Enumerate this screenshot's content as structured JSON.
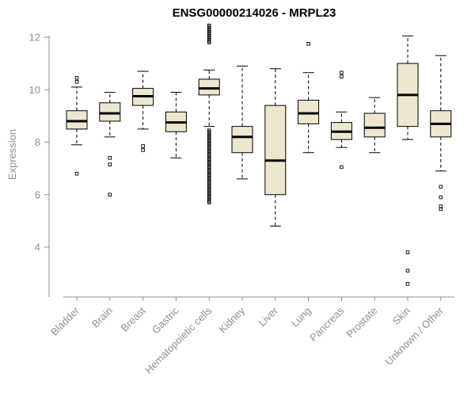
{
  "chart_data": {
    "type": "boxplot",
    "title": "ENSG00000214026 - MRPL23",
    "ylabel": "Expression",
    "yticks": [
      4,
      6,
      8,
      10,
      12
    ],
    "ylim": [
      2.3,
      12.6
    ],
    "grid": false,
    "legend": "none",
    "colors": {
      "box_fill": "#EDE7D0",
      "box_border": "#000000",
      "median": "#000000",
      "axis": "#8f8f8f",
      "title": "#000000"
    },
    "categories": [
      "Bladder",
      "Brain",
      "Breast",
      "Gastric",
      "Hematopoietic cells",
      "Kidney",
      "Liver",
      "Lung",
      "Pancreas",
      "Prostate",
      "Skin",
      "Unknown / Other"
    ],
    "boxes": [
      {
        "category": "Bladder",
        "lower_whisker": 7.9,
        "q1": 8.5,
        "median": 8.8,
        "q3": 9.2,
        "upper_whisker": 10.1,
        "outliers": [
          10.45,
          10.3,
          6.8
        ]
      },
      {
        "category": "Brain",
        "lower_whisker": 8.2,
        "q1": 8.8,
        "median": 9.1,
        "q3": 9.5,
        "upper_whisker": 9.9,
        "outliers": [
          7.4,
          7.15,
          6.0
        ]
      },
      {
        "category": "Breast",
        "lower_whisker": 8.5,
        "q1": 9.4,
        "median": 9.75,
        "q3": 10.05,
        "upper_whisker": 10.7,
        "outliers": [
          7.85,
          7.7
        ]
      },
      {
        "category": "Gastric",
        "lower_whisker": 7.4,
        "q1": 8.4,
        "median": 8.75,
        "q3": 9.15,
        "upper_whisker": 9.9,
        "outliers": []
      },
      {
        "category": "Hematopoietic cells",
        "lower_whisker": 8.6,
        "q1": 9.8,
        "median": 10.05,
        "q3": 10.4,
        "upper_whisker": 10.75,
        "outliers": [
          12.45,
          12.4,
          12.35,
          12.3,
          12.25,
          12.2,
          12.15,
          12.1,
          12.05,
          12.0,
          11.95,
          11.9,
          11.85,
          11.8,
          8.45,
          8.4,
          8.35,
          8.3,
          8.25,
          8.2,
          8.15,
          8.1,
          8.05,
          8.0,
          7.95,
          7.9,
          7.85,
          7.8,
          7.75,
          7.7,
          7.65,
          7.6,
          7.55,
          7.5,
          7.45,
          7.4,
          7.35,
          7.3,
          7.25,
          7.2,
          7.15,
          7.1,
          7.05,
          7.0,
          6.95,
          6.9,
          6.85,
          6.8,
          6.75,
          6.7,
          6.65,
          6.6,
          6.55,
          6.5,
          6.45,
          6.4,
          6.35,
          6.3,
          6.25,
          6.2,
          6.15,
          6.1,
          6.05,
          6.0,
          5.95,
          5.9,
          5.85,
          5.8,
          5.75,
          5.7
        ]
      },
      {
        "category": "Kidney",
        "lower_whisker": 6.6,
        "q1": 7.6,
        "median": 8.2,
        "q3": 8.6,
        "upper_whisker": 10.9,
        "outliers": []
      },
      {
        "category": "Liver",
        "lower_whisker": 4.8,
        "q1": 6.0,
        "median": 7.3,
        "q3": 9.4,
        "upper_whisker": 10.8,
        "outliers": []
      },
      {
        "category": "Lung",
        "lower_whisker": 7.6,
        "q1": 8.7,
        "median": 9.1,
        "q3": 9.6,
        "upper_whisker": 10.65,
        "outliers": [
          11.75
        ]
      },
      {
        "category": "Pancreas",
        "lower_whisker": 7.8,
        "q1": 8.1,
        "median": 8.4,
        "q3": 8.75,
        "upper_whisker": 9.15,
        "outliers": [
          10.65,
          10.5,
          7.05
        ]
      },
      {
        "category": "Prostate",
        "lower_whisker": 7.6,
        "q1": 8.2,
        "median": 8.55,
        "q3": 9.1,
        "upper_whisker": 9.7,
        "outliers": []
      },
      {
        "category": "Skin",
        "lower_whisker": 8.1,
        "q1": 8.6,
        "median": 9.8,
        "q3": 11.0,
        "upper_whisker": 12.05,
        "outliers": [
          3.8,
          3.1,
          2.6
        ]
      },
      {
        "category": "Unknown / Other",
        "lower_whisker": 6.9,
        "q1": 8.2,
        "median": 8.7,
        "q3": 9.2,
        "upper_whisker": 11.3,
        "outliers": [
          6.3,
          5.9,
          5.55,
          5.45
        ]
      }
    ]
  }
}
